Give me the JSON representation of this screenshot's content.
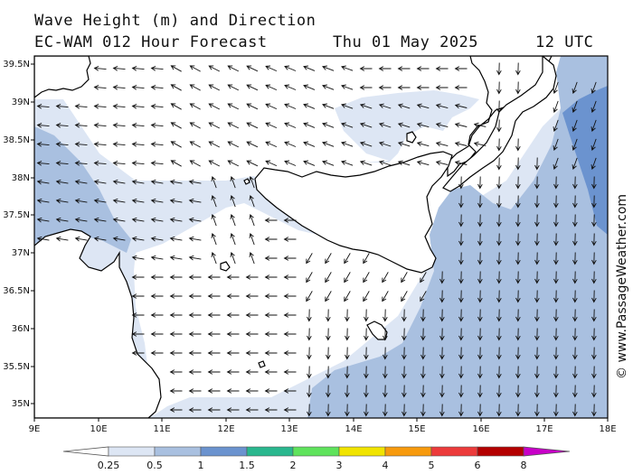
{
  "header": {
    "title": "Wave Height (m) and Direction",
    "model": "EC-WAM 012 Hour Forecast",
    "date": "Thu 01 May 2025",
    "time": "12 UTC"
  },
  "credit": "© www.PassageWeather.com",
  "map": {
    "lon_labels": [
      "9E",
      "10E",
      "11E",
      "12E",
      "13E",
      "14E",
      "15E",
      "16E",
      "17E",
      "18E"
    ],
    "lat_labels": [
      "39.5N",
      "39N",
      "38.5N",
      "38N",
      "37.5N",
      "37N",
      "36.5N",
      "36N",
      "35.5N",
      "35N"
    ],
    "colors": {
      "land": "#ffffff",
      "band_025": "#dde6f4",
      "band_05": "#a9c0e0",
      "band_1": "#6b93cf",
      "coast": "#000000",
      "arrow": "#111111"
    }
  },
  "legend": {
    "labels": [
      "0.25",
      "0.5",
      "1",
      "1.5",
      "2",
      "3",
      "4",
      "5",
      "6",
      "8"
    ],
    "colors": [
      "#ffffff",
      "#dde6f4",
      "#a9c0e0",
      "#6b93cf",
      "#2ab78e",
      "#5fe35c",
      "#f1e400",
      "#f79a0d",
      "#ec3b3b",
      "#b40000",
      "#c800c8"
    ]
  }
}
